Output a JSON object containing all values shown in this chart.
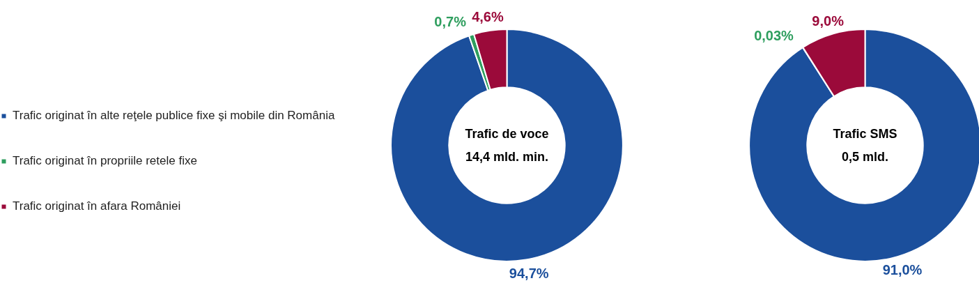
{
  "chart_data": [
    {
      "type": "donut",
      "title": "Trafic de voce",
      "subtitle": "14,4 mld. min.",
      "categories": [
        "Trafic originat în alte reţele publice fixe şi mobile din România",
        "Trafic originat în propriile retele fixe",
        "Trafic originat în afara României"
      ],
      "values": [
        94.7,
        0.7,
        4.6
      ],
      "value_labels": [
        "94,7%",
        "0,7%",
        "4,6%"
      ],
      "colors": [
        "#1b4f9c",
        "#2e9e5e",
        "#9b0a3a"
      ],
      "legend": "left"
    },
    {
      "type": "donut",
      "title": "Trafic SMS",
      "subtitle": "0,5 mld.",
      "categories": [
        null,
        null,
        null
      ],
      "values": [
        91.0,
        0.03,
        9.0
      ],
      "value_labels": [
        "91,0%",
        "0,03%",
        "9,0%"
      ],
      "colors": [
        "#1b4f9c",
        "#2e9e5e",
        "#9b0a3a"
      ]
    }
  ]
}
